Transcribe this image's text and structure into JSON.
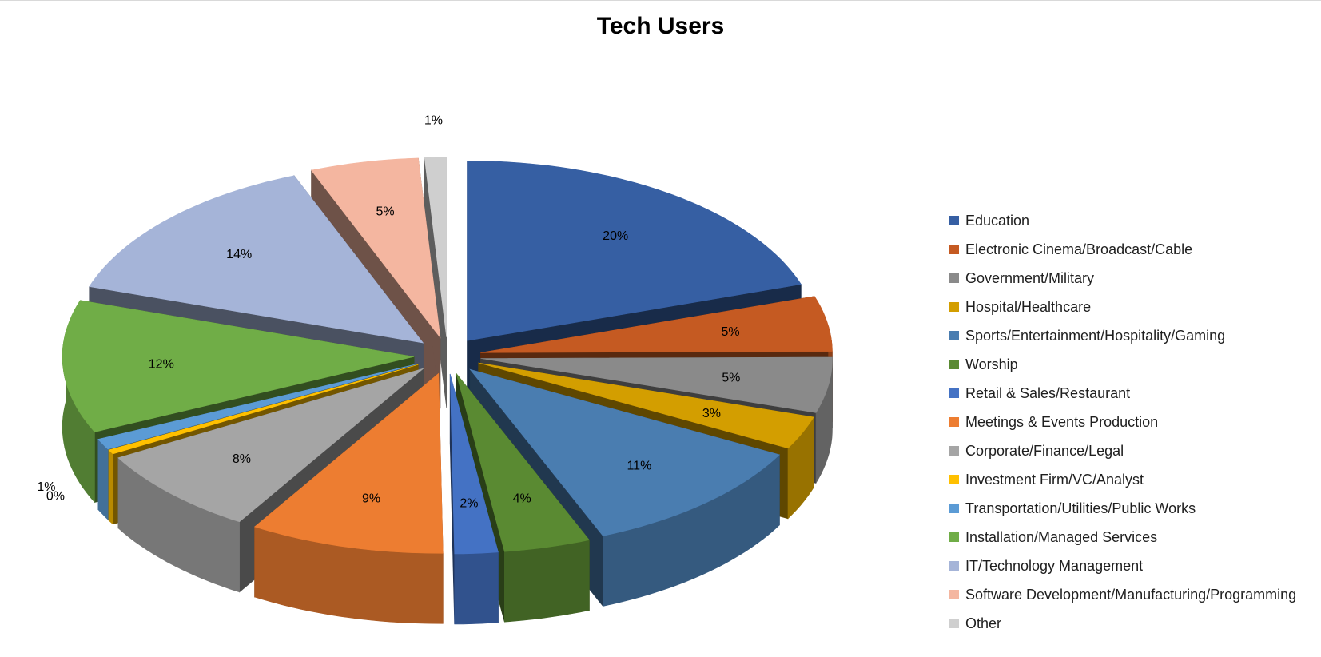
{
  "chart_data": {
    "type": "pie",
    "title": "Tech Users",
    "legend_position": "right",
    "slices": [
      {
        "name": "Education",
        "label": "20%",
        "value": 20,
        "color": "#365FA3"
      },
      {
        "name": "Electronic Cinema/Broadcast/Cable",
        "label": "5%",
        "value": 5,
        "color": "#C55A22"
      },
      {
        "name": "Government/Military",
        "label": "5%",
        "value": 5,
        "color": "#8A8A8A"
      },
      {
        "name": "Hospital/Healthcare",
        "label": "3%",
        "value": 3,
        "color": "#D39E00"
      },
      {
        "name": "Sports/Entertainment/Hospitality/Gaming",
        "label": "11%",
        "value": 11,
        "color": "#4A7DB0"
      },
      {
        "name": "Worship",
        "label": "4%",
        "value": 4,
        "color": "#5A8A32"
      },
      {
        "name": "Retail & Sales/Restaurant",
        "label": "2%",
        "value": 2,
        "color": "#4472C4"
      },
      {
        "name": "Meetings & Events Production",
        "label": "9%",
        "value": 9,
        "color": "#ED7D31"
      },
      {
        "name": "Corporate/Finance/Legal",
        "label": "8%",
        "value": 8,
        "color": "#A5A5A5"
      },
      {
        "name": "Investment Firm/VC/Analyst",
        "label": "0%",
        "value": 0.4,
        "color": "#FFC000"
      },
      {
        "name": "Transportation/Utilities/Public Works",
        "label": "1%",
        "value": 1,
        "color": "#5B9BD5"
      },
      {
        "name": "Installation/Managed Services",
        "label": "12%",
        "value": 12,
        "color": "#70AD47"
      },
      {
        "name": "IT/Technology Management",
        "label": "14%",
        "value": 14,
        "color": "#A5B4D8"
      },
      {
        "name": "Software Development/Manufacturing/Programming",
        "label": "5%",
        "value": 5,
        "color": "#F4B6A0"
      },
      {
        "name": "Other",
        "label": "1%",
        "value": 1,
        "color": "#CFCFCF"
      }
    ]
  }
}
